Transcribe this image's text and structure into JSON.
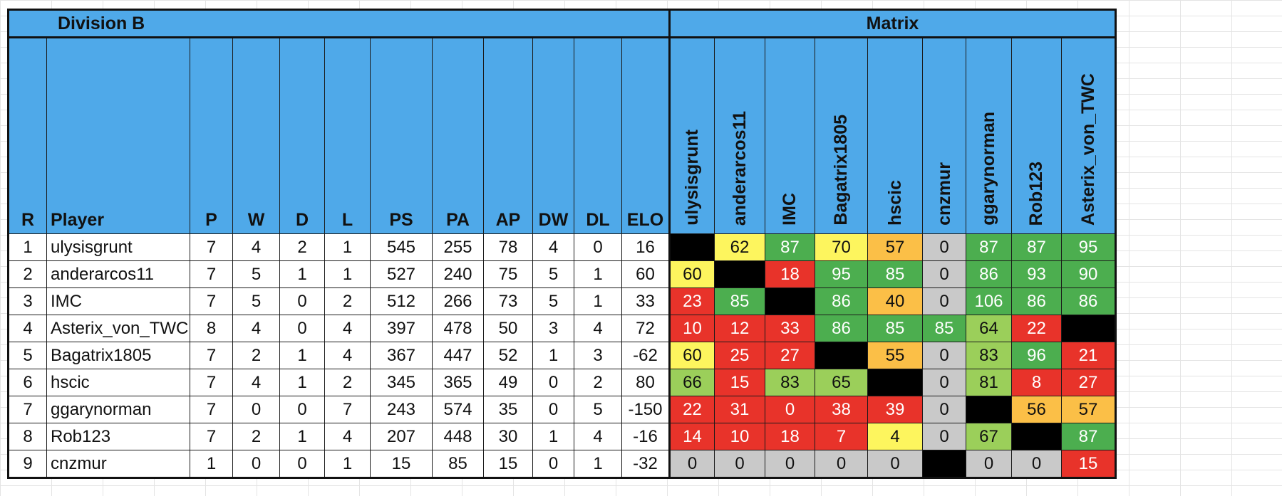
{
  "sheet": {
    "title": "Division B",
    "matrix_title": "Matrix"
  },
  "columns": {
    "rank": "R",
    "player": "Player",
    "stats": [
      "P",
      "W",
      "D",
      "L",
      "PS",
      "PA",
      "AP",
      "DW",
      "DL",
      "ELO"
    ]
  },
  "matrix_columns": [
    "ulysisgrunt",
    "anderarcos11",
    "IMC",
    "Bagatrix1805",
    "hscic",
    "cnzmur",
    "ggarynorman",
    "Rob123",
    "Asterix_von_TWC"
  ],
  "colors": {
    "header_blue": "#4fa9e9",
    "dark_green": "#4cae4f",
    "light_green": "#9bcf5a",
    "yellow": "#fdf55e",
    "orange": "#fbbf47",
    "red": "#e8332a",
    "grey": "#c9c9c9",
    "self": "#000000"
  },
  "rows": [
    {
      "rank": "1",
      "player": "ulysisgrunt",
      "stats": [
        "7",
        "4",
        "2",
        "1",
        "545",
        "255",
        "78",
        "4",
        "0",
        "16"
      ],
      "matrix": [
        {
          "v": "",
          "c": "self"
        },
        {
          "v": "62",
          "c": "yellow"
        },
        {
          "v": "87",
          "c": "dark-green"
        },
        {
          "v": "70",
          "c": "yellow"
        },
        {
          "v": "57",
          "c": "orange"
        },
        {
          "v": "0",
          "c": "grey"
        },
        {
          "v": "87",
          "c": "dark-green"
        },
        {
          "v": "87",
          "c": "dark-green"
        },
        {
          "v": "95",
          "c": "dark-green"
        }
      ]
    },
    {
      "rank": "2",
      "player": "anderarcos11",
      "stats": [
        "7",
        "5",
        "1",
        "1",
        "527",
        "240",
        "75",
        "5",
        "1",
        "60"
      ],
      "matrix": [
        {
          "v": "60",
          "c": "yellow"
        },
        {
          "v": "",
          "c": "self"
        },
        {
          "v": "18",
          "c": "red"
        },
        {
          "v": "95",
          "c": "dark-green"
        },
        {
          "v": "85",
          "c": "dark-green"
        },
        {
          "v": "0",
          "c": "grey"
        },
        {
          "v": "86",
          "c": "dark-green"
        },
        {
          "v": "93",
          "c": "dark-green"
        },
        {
          "v": "90",
          "c": "dark-green"
        }
      ]
    },
    {
      "rank": "3",
      "player": "IMC",
      "stats": [
        "7",
        "5",
        "0",
        "2",
        "512",
        "266",
        "73",
        "5",
        "1",
        "33"
      ],
      "matrix": [
        {
          "v": "23",
          "c": "red"
        },
        {
          "v": "85",
          "c": "dark-green"
        },
        {
          "v": "",
          "c": "self"
        },
        {
          "v": "86",
          "c": "dark-green"
        },
        {
          "v": "40",
          "c": "orange"
        },
        {
          "v": "0",
          "c": "grey"
        },
        {
          "v": "106",
          "c": "dark-green"
        },
        {
          "v": "86",
          "c": "dark-green"
        },
        {
          "v": "86",
          "c": "dark-green"
        }
      ]
    },
    {
      "rank": "4",
      "player": "Asterix_von_TWC",
      "stats": [
        "8",
        "4",
        "0",
        "4",
        "397",
        "478",
        "50",
        "3",
        "4",
        "72"
      ],
      "matrix": [
        {
          "v": "10",
          "c": "red"
        },
        {
          "v": "12",
          "c": "red"
        },
        {
          "v": "33",
          "c": "red"
        },
        {
          "v": "86",
          "c": "dark-green"
        },
        {
          "v": "85",
          "c": "dark-green"
        },
        {
          "v": "85",
          "c": "dark-green"
        },
        {
          "v": "64",
          "c": "light-green"
        },
        {
          "v": "22",
          "c": "red"
        },
        {
          "v": "",
          "c": "self"
        }
      ]
    },
    {
      "rank": "5",
      "player": "Bagatrix1805",
      "stats": [
        "7",
        "2",
        "1",
        "4",
        "367",
        "447",
        "52",
        "1",
        "3",
        "-62"
      ],
      "matrix": [
        {
          "v": "60",
          "c": "yellow"
        },
        {
          "v": "25",
          "c": "red"
        },
        {
          "v": "27",
          "c": "red"
        },
        {
          "v": "",
          "c": "self"
        },
        {
          "v": "55",
          "c": "orange"
        },
        {
          "v": "0",
          "c": "grey"
        },
        {
          "v": "83",
          "c": "light-green"
        },
        {
          "v": "96",
          "c": "dark-green"
        },
        {
          "v": "21",
          "c": "red"
        }
      ]
    },
    {
      "rank": "6",
      "player": "hscic",
      "stats": [
        "7",
        "4",
        "1",
        "2",
        "345",
        "365",
        "49",
        "0",
        "2",
        "80"
      ],
      "matrix": [
        {
          "v": "66",
          "c": "light-green"
        },
        {
          "v": "15",
          "c": "red"
        },
        {
          "v": "83",
          "c": "light-green"
        },
        {
          "v": "65",
          "c": "light-green"
        },
        {
          "v": "",
          "c": "self"
        },
        {
          "v": "0",
          "c": "grey"
        },
        {
          "v": "81",
          "c": "light-green"
        },
        {
          "v": "8",
          "c": "red"
        },
        {
          "v": "27",
          "c": "red"
        }
      ]
    },
    {
      "rank": "7",
      "player": "ggarynorman",
      "stats": [
        "7",
        "0",
        "0",
        "7",
        "243",
        "574",
        "35",
        "0",
        "5",
        "-150"
      ],
      "matrix": [
        {
          "v": "22",
          "c": "red"
        },
        {
          "v": "31",
          "c": "red"
        },
        {
          "v": "0",
          "c": "red"
        },
        {
          "v": "38",
          "c": "red"
        },
        {
          "v": "39",
          "c": "red"
        },
        {
          "v": "0",
          "c": "grey"
        },
        {
          "v": "",
          "c": "self"
        },
        {
          "v": "56",
          "c": "orange"
        },
        {
          "v": "57",
          "c": "orange"
        }
      ]
    },
    {
      "rank": "8",
      "player": "Rob123",
      "stats": [
        "7",
        "2",
        "1",
        "4",
        "207",
        "448",
        "30",
        "1",
        "4",
        "-16"
      ],
      "matrix": [
        {
          "v": "14",
          "c": "red"
        },
        {
          "v": "10",
          "c": "red"
        },
        {
          "v": "18",
          "c": "red"
        },
        {
          "v": "7",
          "c": "red"
        },
        {
          "v": "4",
          "c": "yellow"
        },
        {
          "v": "0",
          "c": "grey"
        },
        {
          "v": "67",
          "c": "light-green"
        },
        {
          "v": "",
          "c": "self"
        },
        {
          "v": "87",
          "c": "dark-green"
        }
      ]
    },
    {
      "rank": "9",
      "player": "cnzmur",
      "stats": [
        "1",
        "0",
        "0",
        "1",
        "15",
        "85",
        "15",
        "0",
        "1",
        "-32"
      ],
      "matrix": [
        {
          "v": "0",
          "c": "grey"
        },
        {
          "v": "0",
          "c": "grey"
        },
        {
          "v": "0",
          "c": "grey"
        },
        {
          "v": "0",
          "c": "grey"
        },
        {
          "v": "0",
          "c": "grey"
        },
        {
          "v": "",
          "c": "self"
        },
        {
          "v": "0",
          "c": "grey"
        },
        {
          "v": "0",
          "c": "grey"
        },
        {
          "v": "15",
          "c": "red"
        }
      ]
    }
  ]
}
